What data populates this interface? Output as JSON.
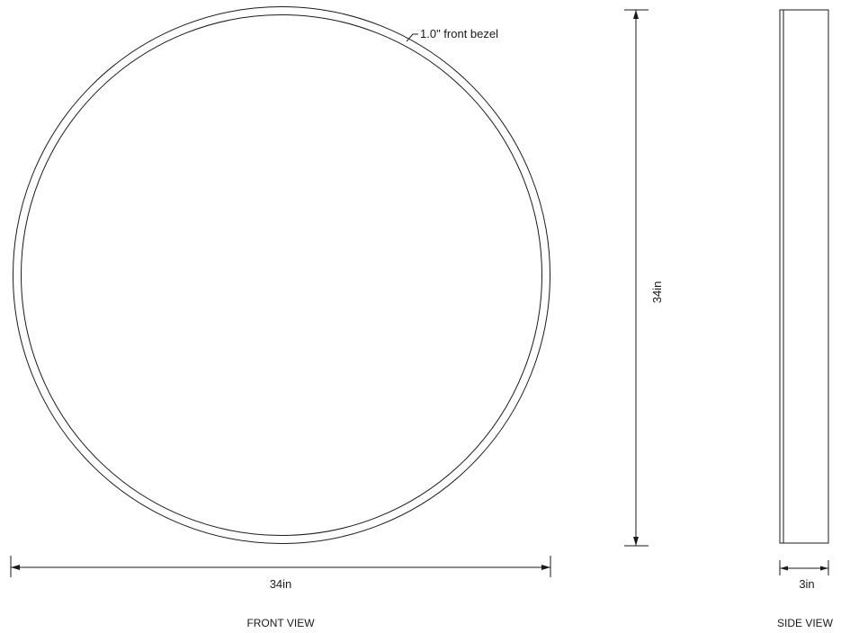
{
  "front_view": {
    "callout_label": "1.0\" front bezel",
    "width_dimension": "34in",
    "view_title": "FRONT VIEW"
  },
  "height_dimension": "34in",
  "side_view": {
    "depth_dimension": "3in",
    "view_title": "SIDE VIEW"
  }
}
